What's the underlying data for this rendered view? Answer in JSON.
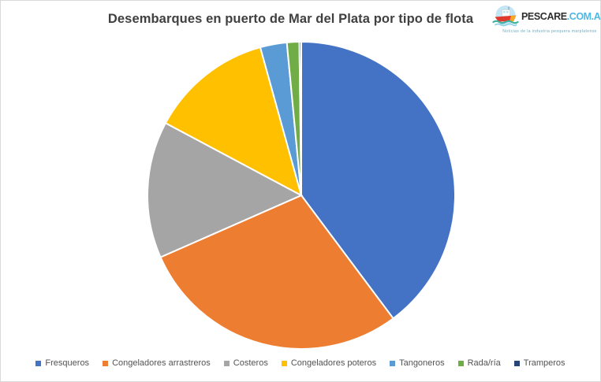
{
  "logo": {
    "brand_primary": "PESCARE",
    "brand_secondary": ".COM.AR",
    "tagline": "Noticias de la industria pesquera marplatense"
  },
  "chart_data": {
    "type": "pie",
    "title": "Desembarques en puerto de Mar del Plata por tipo de flota",
    "start_angle_deg": 0,
    "direction": "clockwise",
    "legend_position": "bottom",
    "units": "percent of total landings",
    "slices": [
      {
        "label": "Fresqueros",
        "value_pct": 39.8,
        "color": "#4472C4"
      },
      {
        "label": "Congeladores arrastreros",
        "value_pct": 28.6,
        "color": "#ED7D31"
      },
      {
        "label": "Costeros",
        "value_pct": 14.4,
        "color": "#A5A5A5"
      },
      {
        "label": "Congeladores poteros",
        "value_pct": 12.9,
        "color": "#FFC000"
      },
      {
        "label": "Tangoneros",
        "value_pct": 2.8,
        "color": "#5B9BD5"
      },
      {
        "label": "Rada/ría",
        "value_pct": 1.3,
        "color": "#70AD47"
      },
      {
        "label": "Tramperos",
        "value_pct": 0.2,
        "color": "#264478"
      }
    ]
  }
}
